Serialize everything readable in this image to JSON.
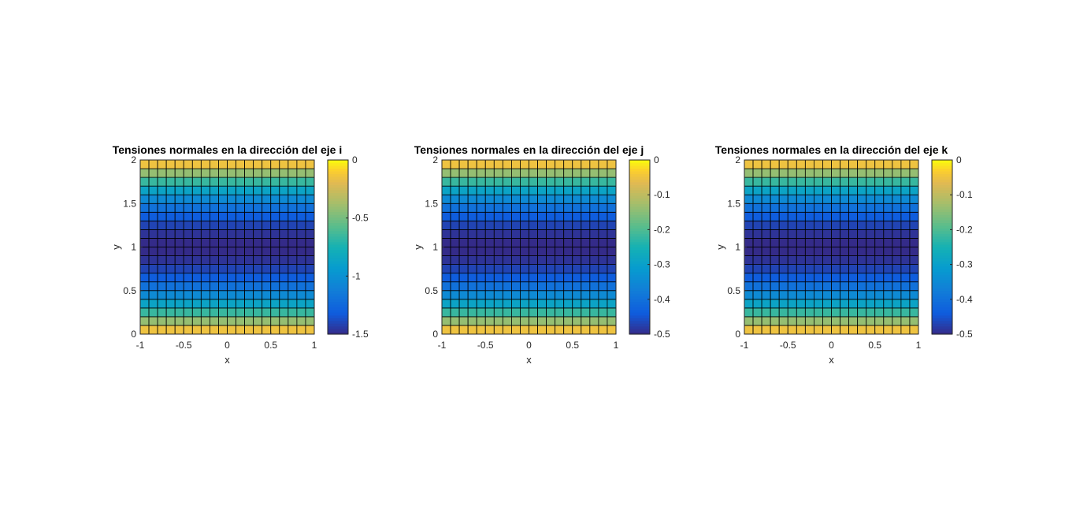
{
  "chart_data": [
    {
      "type": "heatmap",
      "title": "Tensiones normales en la dirección del eje i",
      "xlabel": "x",
      "ylabel": "y",
      "xlim": [
        -1,
        1
      ],
      "ylim": [
        0,
        2
      ],
      "xticks": [
        "-1",
        "-0.5",
        "0",
        "0.5",
        "1"
      ],
      "yticks": [
        "0",
        "0.5",
        "1",
        "1.5",
        "2"
      ],
      "grid": {
        "x_cells": 20,
        "y_cells": 20
      },
      "field": "value(y) = -(1 - (y - 1)^2) * 1.5, constant along x",
      "clim": [
        -1.5,
        0
      ],
      "colorbar_ticks": [
        "0",
        "-0.5",
        "-1",
        "-1.5"
      ],
      "colormap": "parula"
    },
    {
      "type": "heatmap",
      "title": "Tensiones normales en la dirección del eje j",
      "xlabel": "x",
      "ylabel": "y",
      "xlim": [
        -1,
        1
      ],
      "ylim": [
        0,
        2
      ],
      "xticks": [
        "-1",
        "-0.5",
        "0",
        "0.5",
        "1"
      ],
      "yticks": [
        "0",
        "0.5",
        "1",
        "1.5",
        "2"
      ],
      "grid": {
        "x_cells": 20,
        "y_cells": 20
      },
      "field": "value(y) = -(1 - (y - 1)^2) * 0.5, constant along x",
      "clim": [
        -0.5,
        0
      ],
      "colorbar_ticks": [
        "0",
        "-0.1",
        "-0.2",
        "-0.3",
        "-0.4",
        "-0.5"
      ],
      "colormap": "parula"
    },
    {
      "type": "heatmap",
      "title": "Tensiones normales en la dirección del eje k",
      "xlabel": "x",
      "ylabel": "y",
      "xlim": [
        -1,
        1
      ],
      "ylim": [
        0,
        2
      ],
      "xticks": [
        "-1",
        "-0.5",
        "0",
        "0.5",
        "1"
      ],
      "yticks": [
        "0",
        "0.5",
        "1",
        "1.5",
        "2"
      ],
      "grid": {
        "x_cells": 20,
        "y_cells": 20
      },
      "field": "value(y) = -(1 - (y - 1)^2) * 0.5, constant along x",
      "clim": [
        -0.5,
        0
      ],
      "colorbar_ticks": [
        "0",
        "-0.1",
        "-0.2",
        "-0.3",
        "-0.4",
        "-0.5"
      ],
      "colormap": "parula"
    }
  ]
}
